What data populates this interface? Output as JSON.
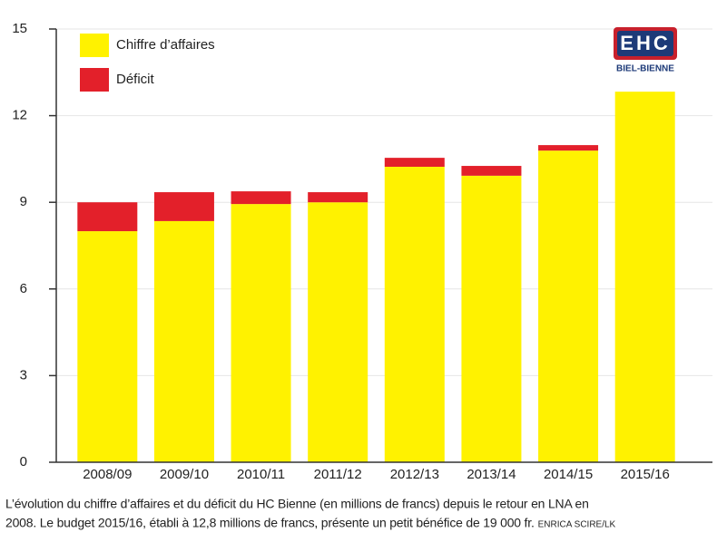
{
  "chart_data": {
    "type": "stacked-bar",
    "categories": [
      "2008/09",
      "2009/10",
      "2010/11",
      "2011/12",
      "2012/13",
      "2013/14",
      "2014/15",
      "2015/16"
    ],
    "series": [
      {
        "name": "Chiffre d’affaires",
        "color": "#fff200",
        "values": [
          8.0,
          8.35,
          8.94,
          9.0,
          10.23,
          9.92,
          10.79,
          12.83
        ]
      },
      {
        "name": "Déficit",
        "color": "#e3202a",
        "values": [
          1.0,
          1.0,
          0.44,
          0.35,
          0.31,
          0.34,
          0.19,
          0
        ]
      }
    ],
    "ylim": [
      0,
      15
    ],
    "yticks": [
      0,
      3,
      6,
      9,
      12,
      15
    ],
    "grid": true,
    "legend": "top-left",
    "logo_text": "EHC",
    "logo_subtitle": "BIEL-BIENNE",
    "caption": [
      "L’évolution du chiffre d’affaires et du déficit du HC Bienne (en millions de francs) depuis le retour en LNA en",
      "2008. Le budget 2015/16, établi à 12,8 millions de francs, présente un petit bénéfice de 19 000 fr."
    ],
    "credit": "ENRICA SCIRE/LK"
  }
}
